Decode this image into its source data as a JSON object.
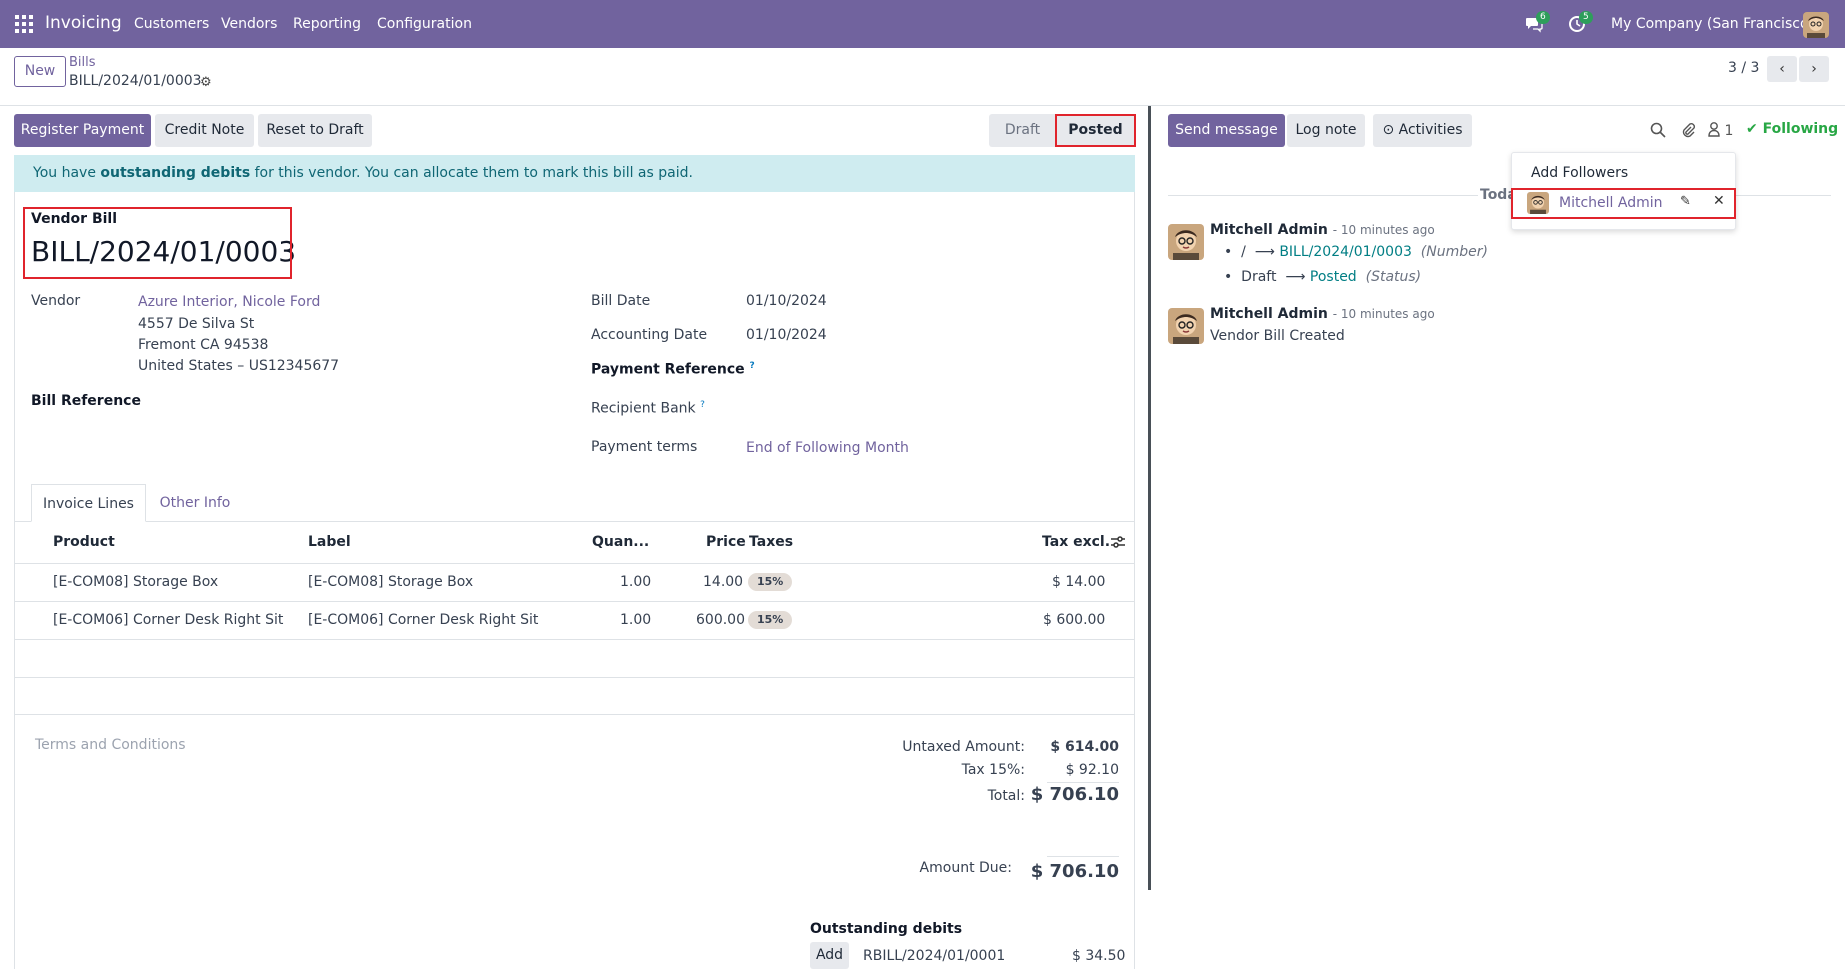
{
  "nav": {
    "brand": "Invoicing",
    "menu": [
      "Customers",
      "Vendors",
      "Reporting",
      "Configuration"
    ],
    "messages_count": "6",
    "activities_count": "5",
    "company": "My Company (San Francisco)"
  },
  "control": {
    "new_label": "New",
    "breadcrumb_parent": "Bills",
    "breadcrumb_current": "BILL/2024/01/0003",
    "pager": "3 / 3"
  },
  "actions": {
    "register_payment": "Register Payment",
    "credit_note": "Credit Note",
    "reset_to_draft": "Reset to Draft",
    "status_draft": "Draft",
    "status_posted": "Posted"
  },
  "alert": {
    "prefix": "You have ",
    "bold": "outstanding debits",
    "suffix": " for this vendor. You can allocate them to mark this bill as paid."
  },
  "form": {
    "type_label": "Vendor Bill",
    "number": "BILL/2024/01/0003",
    "vendor_label": "Vendor",
    "vendor_name": "Azure Interior, Nicole Ford",
    "vendor_address1": "4557 De Silva St",
    "vendor_address2": "Fremont CA 94538",
    "vendor_address3": "United States – US12345677",
    "bill_reference_label": "Bill Reference",
    "bill_date_label": "Bill Date",
    "bill_date": "01/10/2024",
    "accounting_date_label": "Accounting Date",
    "accounting_date": "01/10/2024",
    "payment_reference_label": "Payment Reference",
    "recipient_bank_label": "Recipient Bank",
    "payment_terms_label": "Payment terms",
    "payment_terms": "End of Following Month",
    "help_mark": "?"
  },
  "tabs": [
    "Invoice Lines",
    "Other Info"
  ],
  "table": {
    "headers": [
      "Product",
      "Label",
      "Quan...",
      "Price",
      "Taxes",
      "Tax excl."
    ],
    "rows": [
      {
        "product": "[E-COM08] Storage Box",
        "label": "[E-COM08] Storage Box",
        "qty": "1.00",
        "price": "14.00",
        "tax": "15%",
        "subtotal": "$ 14.00"
      },
      {
        "product": "[E-COM06] Corner Desk Right Sit",
        "label": "[E-COM06] Corner Desk Right Sit",
        "qty": "1.00",
        "price": "600.00",
        "tax": "15%",
        "subtotal": "$ 600.00"
      }
    ]
  },
  "terms_placeholder": "Terms and Conditions",
  "totals": {
    "untaxed_label": "Untaxed Amount:",
    "untaxed": "$ 614.00",
    "tax_label": "Tax 15%:",
    "tax": "$ 92.10",
    "total_label": "Total:",
    "total": "$ 706.10",
    "due_label": "Amount Due:",
    "due": "$ 706.10"
  },
  "outstanding": {
    "title": "Outstanding debits",
    "add_label": "Add",
    "ref": "RBILL/2024/01/0001",
    "amount": "$ 34.50"
  },
  "chatter": {
    "send_message": "Send message",
    "log_note": "Log note",
    "activities": "Activities",
    "followers_count": "1",
    "following": "Following",
    "today": "Toda",
    "dropdown_add": "Add Followers",
    "dropdown_follower": "Mitchell Admin",
    "messages": [
      {
        "author": "Mitchell Admin",
        "time": "- 10 minutes ago",
        "change1_old": "/",
        "change1_new": "BILL/2024/01/0003",
        "change1_field": "(Number)",
        "change2_old": "Draft",
        "change2_new": "Posted",
        "change2_field": "(Status)"
      },
      {
        "author": "Mitchell Admin",
        "time": "- 10 minutes ago",
        "body": "Vendor Bill Created"
      }
    ]
  },
  "colors": {
    "brand": "#71639e",
    "highlight": "#e0242c",
    "success": "#28a745"
  }
}
